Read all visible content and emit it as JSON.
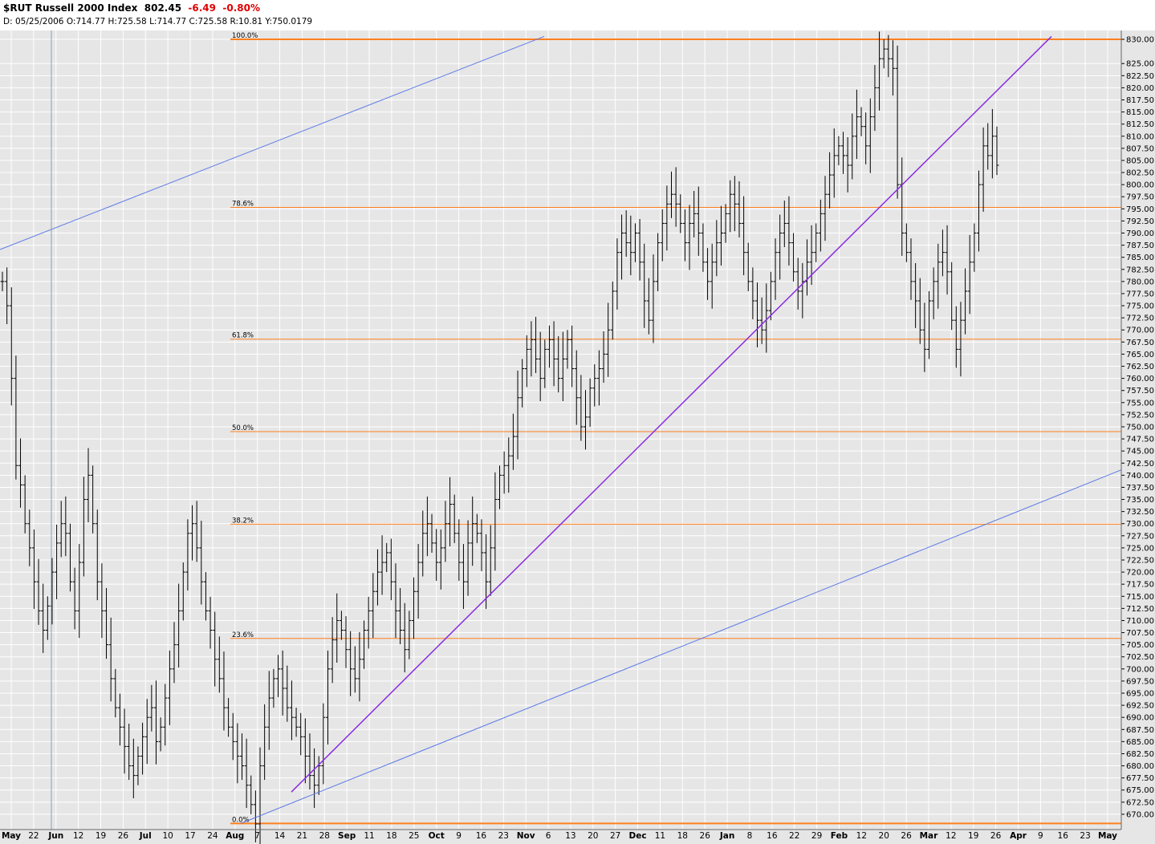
{
  "header": {
    "symbol": "$RUT",
    "name": "Russell 2000 Index",
    "last": "802.45",
    "change": "-6.49",
    "change_pct": "-0.80%",
    "date": "D: 05/25/2006",
    "open": "O:714.77",
    "high": "H:725.58",
    "low": "L:714.77",
    "close": "C:725.58",
    "range": "R:10.81",
    "y_readout": "Y:750.0179"
  },
  "colors": {
    "background": "#e6e6e6",
    "grid": "#ffffff",
    "bars": "#000000",
    "fib": "#ff7f1e",
    "trend_purple": "#8a2be2",
    "trend_blue": "#5a78e6",
    "cursor": "#8aa0b4",
    "negative": "#e00000"
  },
  "chart_data": {
    "type": "ohlc-bar",
    "ylim": [
      668,
      831
    ],
    "x_ticks": [
      "May",
      "22",
      "Jun",
      "12",
      "19",
      "26",
      "Jul",
      "10",
      "17",
      "24",
      "Aug",
      "7",
      "14",
      "21",
      "28",
      "Sep",
      "11",
      "18",
      "25",
      "Oct",
      "9",
      "16",
      "23",
      "Nov",
      "6",
      "13",
      "20",
      "27",
      "Dec",
      "11",
      "18",
      "26",
      "Jan",
      "8",
      "16",
      "22",
      "29",
      "Feb",
      "12",
      "20",
      "26",
      "Mar",
      "12",
      "19",
      "26",
      "Apr",
      "9",
      "16",
      "23",
      "May"
    ],
    "y_ticks": [
      "830.00",
      "825.00",
      "822.50",
      "820.00",
      "817.50",
      "815.00",
      "812.50",
      "810.00",
      "807.50",
      "805.00",
      "802.50",
      "800.00",
      "797.50",
      "795.00",
      "792.50",
      "790.00",
      "787.50",
      "785.00",
      "782.50",
      "780.00",
      "777.50",
      "775.00",
      "772.50",
      "770.00",
      "767.50",
      "765.00",
      "762.50",
      "760.00",
      "757.50",
      "755.00",
      "752.50",
      "750.00",
      "747.50",
      "745.00",
      "742.50",
      "740.00",
      "737.50",
      "735.00",
      "732.50",
      "730.00",
      "727.50",
      "725.00",
      "722.50",
      "720.00",
      "717.50",
      "715.00",
      "712.50",
      "710.00",
      "707.50",
      "705.00",
      "702.50",
      "700.00",
      "697.50",
      "695.00",
      "692.50",
      "690.00",
      "687.50",
      "685.00",
      "682.50",
      "680.00",
      "677.50",
      "675.00",
      "672.50",
      "670.00"
    ],
    "fib_levels": [
      {
        "label": "100.0%",
        "value": 830.0
      },
      {
        "label": "78.6%",
        "value": 795.3
      },
      {
        "label": "61.8%",
        "value": 768.1
      },
      {
        "label": "50.0%",
        "value": 749.0
      },
      {
        "label": "38.2%",
        "value": 729.9
      },
      {
        "label": "23.6%",
        "value": 706.3
      },
      {
        "label": "0.0%",
        "value": 668.1
      }
    ],
    "closes": [
      780,
      775,
      760,
      742,
      738,
      730,
      725,
      718,
      712,
      708,
      713,
      720,
      726,
      730,
      728,
      718,
      712,
      722,
      735,
      740,
      730,
      718,
      712,
      705,
      698,
      692,
      688,
      684,
      680,
      678,
      682,
      686,
      690,
      692,
      685,
      688,
      694,
      700,
      705,
      712,
      720,
      728,
      730,
      725,
      718,
      712,
      708,
      702,
      698,
      692,
      688,
      685,
      682,
      680,
      676,
      672,
      668,
      680,
      688,
      694,
      698,
      700,
      696,
      692,
      690,
      688,
      686,
      682,
      678,
      676,
      680,
      690,
      700,
      706,
      710,
      708,
      704,
      700,
      698,
      702,
      708,
      712,
      716,
      720,
      722,
      724,
      718,
      712,
      708,
      704,
      710,
      716,
      722,
      728,
      730,
      726,
      722,
      725,
      730,
      734,
      728,
      722,
      718,
      726,
      730,
      728,
      724,
      718,
      725,
      735,
      740,
      742,
      744,
      748,
      756,
      762,
      766,
      768,
      764,
      760,
      766,
      768,
      764,
      760,
      764,
      768,
      762,
      756,
      750,
      752,
      758,
      760,
      762,
      765,
      770,
      778,
      786,
      790,
      788,
      786,
      790,
      784,
      776,
      772,
      780,
      788,
      792,
      796,
      798,
      796,
      792,
      788,
      792,
      794,
      790,
      784,
      780,
      784,
      788,
      790,
      794,
      798,
      796,
      792,
      786,
      780,
      776,
      772,
      770,
      774,
      780,
      786,
      790,
      792,
      788,
      782,
      778,
      780,
      784,
      786,
      790,
      794,
      798,
      802,
      806,
      808,
      806,
      804,
      810,
      814,
      812,
      808,
      814,
      820,
      826,
      828,
      826,
      824,
      800,
      790,
      786,
      780,
      776,
      770,
      766,
      776,
      780,
      784,
      786,
      782,
      772,
      766,
      772,
      778,
      784,
      790,
      800,
      808,
      806,
      810,
      804
    ],
    "trend_lines": [
      {
        "name": "channel-upper",
        "x": [
          0,
          678
        ],
        "y": [
          786.6,
          830.6
        ]
      },
      {
        "name": "uptrend",
        "x": [
          363,
          1310
        ],
        "y": [
          674.6,
          830.6
        ]
      },
      {
        "name": "channel-lower",
        "x": [
          300,
          1397
        ],
        "y": [
          668.1,
          741.1
        ]
      }
    ]
  }
}
